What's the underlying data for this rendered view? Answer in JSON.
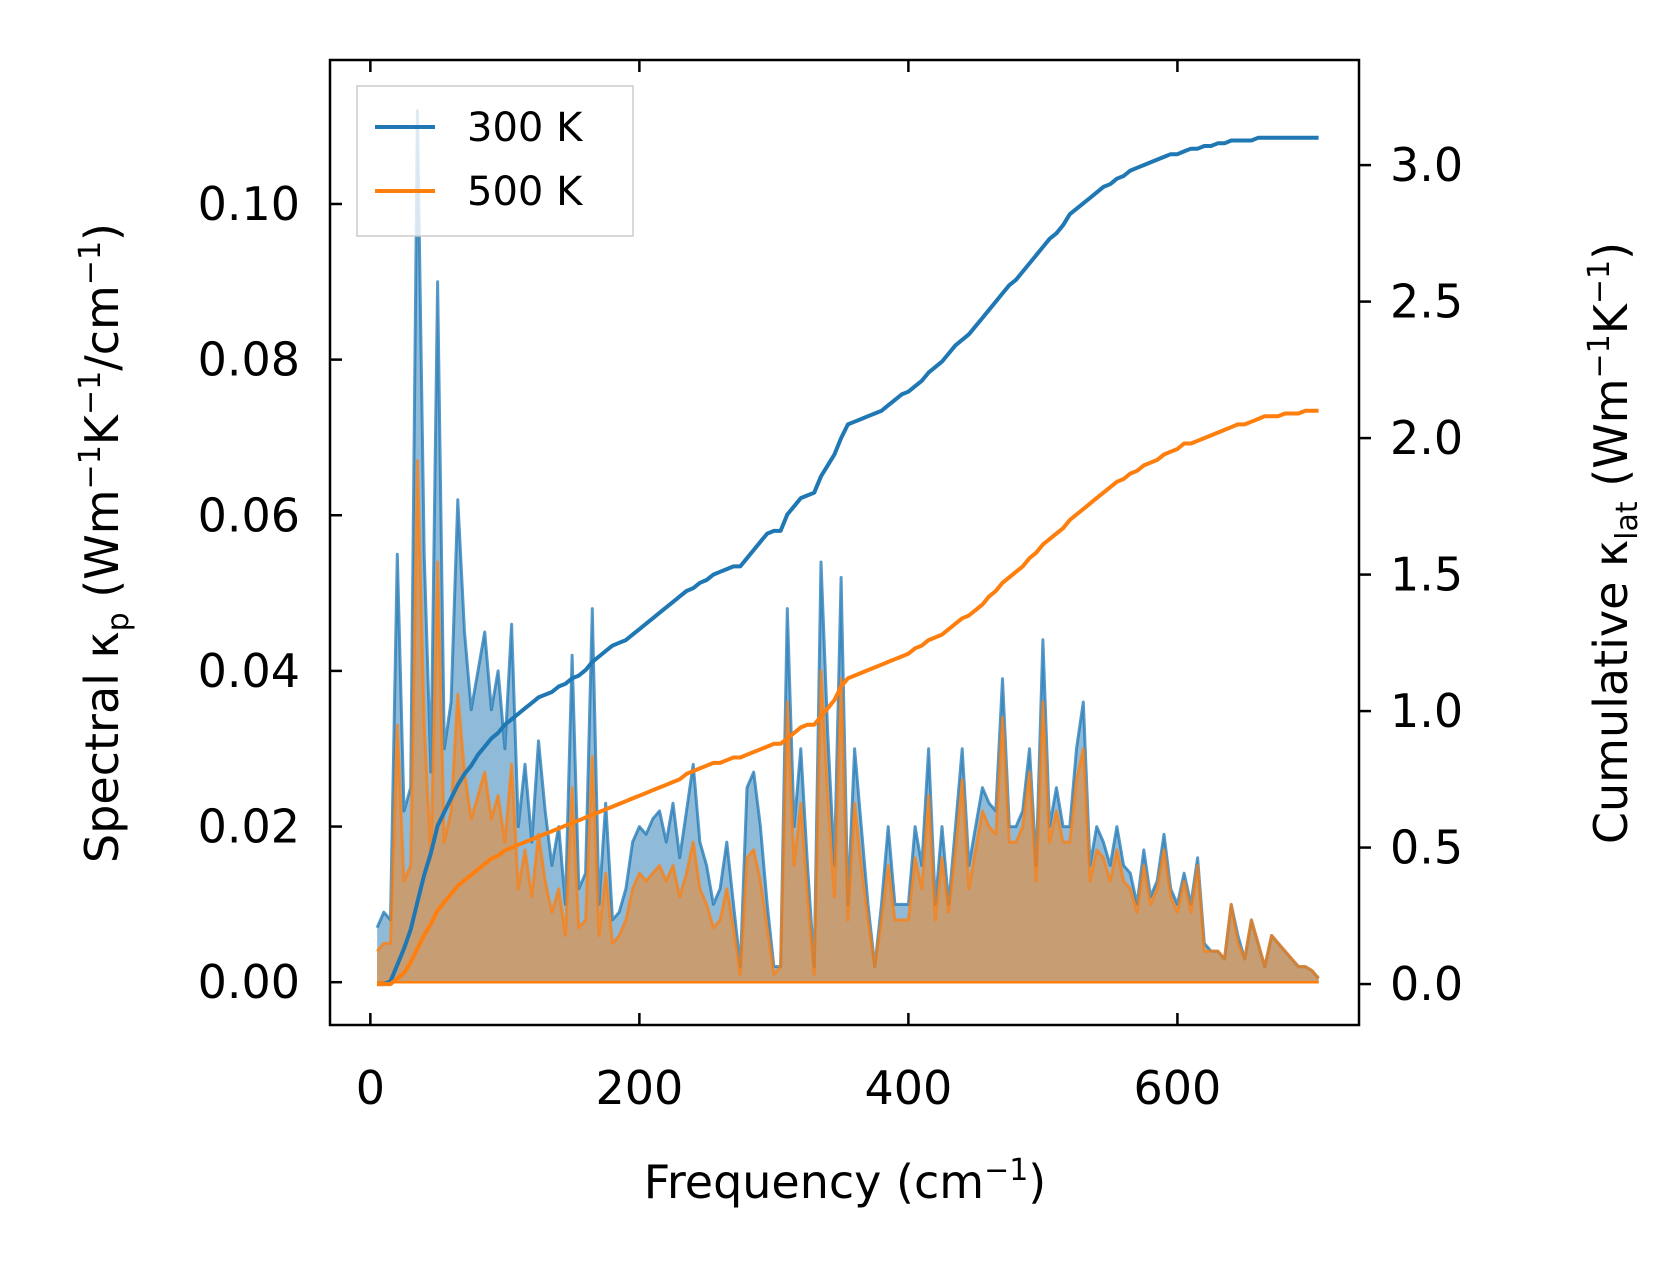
{
  "colors": {
    "series_300K": "#1f77b4",
    "series_500K": "#ff7f0e",
    "axis": "#000000",
    "background": "#ffffff"
  },
  "chart_data": {
    "type": "line",
    "title": "",
    "xlabel": "Frequency (cm",
    "xlabel_sup": "−1",
    "xlabel_tail": ")",
    "ylabel_left": "Spectral κp (Wm−1K−1/cm−1)",
    "ylabel_left_parts": [
      "Spectral κ",
      "p",
      " (Wm",
      "−1",
      "K",
      "−1",
      "/cm",
      "−1",
      ")"
    ],
    "ylabel_right": "Cumulative κlat (Wm−1K−1)",
    "ylabel_right_parts": [
      "Cumulative κ",
      "lat",
      " (Wm",
      "−1",
      "K",
      "−1",
      ")"
    ],
    "xlim": [
      -30,
      735
    ],
    "ylim_left": [
      -0.0055,
      0.1185
    ],
    "ylim_right": [
      -0.15,
      3.385
    ],
    "xticks": [
      0,
      200,
      400,
      600
    ],
    "xtick_labels": [
      "0",
      "200",
      "400",
      "600"
    ],
    "yticks_left": [
      0.0,
      0.02,
      0.04,
      0.06,
      0.08,
      0.1
    ],
    "ytick_labels_left": [
      "0.00",
      "0.02",
      "0.04",
      "0.06",
      "0.08",
      "0.10"
    ],
    "yticks_right": [
      0.0,
      0.5,
      1.0,
      1.5,
      2.0,
      2.5,
      3.0
    ],
    "ytick_labels_right": [
      "0.0",
      "0.5",
      "1.0",
      "1.5",
      "2.0",
      "2.5",
      "3.0"
    ],
    "grid": false,
    "legend_position": "top-left",
    "spectral_x": [
      5,
      10,
      15,
      20,
      25,
      30,
      35,
      40,
      45,
      50,
      55,
      60,
      65,
      70,
      75,
      80,
      85,
      90,
      95,
      100,
      105,
      110,
      115,
      120,
      125,
      130,
      135,
      140,
      145,
      150,
      155,
      160,
      165,
      170,
      175,
      180,
      185,
      190,
      195,
      200,
      205,
      210,
      215,
      220,
      225,
      230,
      235,
      240,
      245,
      250,
      255,
      260,
      265,
      270,
      275,
      280,
      285,
      290,
      295,
      300,
      305,
      310,
      315,
      320,
      325,
      330,
      335,
      340,
      345,
      350,
      355,
      360,
      365,
      370,
      375,
      380,
      385,
      390,
      395,
      400,
      405,
      410,
      415,
      420,
      425,
      430,
      435,
      440,
      445,
      450,
      455,
      460,
      465,
      470,
      475,
      480,
      485,
      490,
      495,
      500,
      505,
      510,
      515,
      520,
      525,
      530,
      535,
      540,
      545,
      550,
      555,
      560,
      565,
      570,
      575,
      580,
      585,
      590,
      595,
      600,
      605,
      610,
      615,
      620,
      625,
      630,
      635,
      640,
      645,
      650,
      655,
      660,
      665,
      670,
      675,
      680,
      685,
      690,
      695,
      700,
      705
    ],
    "series": [
      {
        "name": "300 K",
        "color": "#1f77b4",
        "spectral": [
          0.007,
          0.009,
          0.008,
          0.055,
          0.022,
          0.025,
          0.112,
          0.055,
          0.027,
          0.09,
          0.03,
          0.036,
          0.062,
          0.045,
          0.035,
          0.04,
          0.045,
          0.035,
          0.04,
          0.03,
          0.046,
          0.02,
          0.028,
          0.018,
          0.031,
          0.022,
          0.015,
          0.02,
          0.01,
          0.042,
          0.012,
          0.014,
          0.048,
          0.01,
          0.023,
          0.008,
          0.009,
          0.012,
          0.018,
          0.02,
          0.019,
          0.021,
          0.022,
          0.018,
          0.023,
          0.016,
          0.022,
          0.028,
          0.018,
          0.015,
          0.01,
          0.012,
          0.018,
          0.01,
          0.002,
          0.025,
          0.027,
          0.02,
          0.01,
          0.002,
          0.002,
          0.048,
          0.02,
          0.03,
          0.015,
          0.002,
          0.054,
          0.032,
          0.015,
          0.052,
          0.01,
          0.03,
          0.02,
          0.01,
          0.002,
          0.01,
          0.02,
          0.01,
          0.01,
          0.01,
          0.02,
          0.015,
          0.03,
          0.01,
          0.02,
          0.01,
          0.02,
          0.03,
          0.015,
          0.02,
          0.025,
          0.023,
          0.022,
          0.039,
          0.02,
          0.02,
          0.022,
          0.03,
          0.015,
          0.044,
          0.02,
          0.025,
          0.02,
          0.02,
          0.03,
          0.036,
          0.015,
          0.02,
          0.018,
          0.015,
          0.02,
          0.015,
          0.014,
          0.01,
          0.017,
          0.011,
          0.013,
          0.019,
          0.012,
          0.01,
          0.014,
          0.01,
          0.016,
          0.005,
          0.004,
          0.004,
          0.003,
          0.01,
          0.006,
          0.003,
          0.008,
          0.005,
          0.002,
          0.006,
          0.005,
          0.004,
          0.003,
          0.002,
          0.002,
          0.0015,
          0.0005
        ],
        "cumulative": [
          0.0,
          0.0,
          0.01,
          0.07,
          0.13,
          0.2,
          0.3,
          0.4,
          0.48,
          0.58,
          0.63,
          0.68,
          0.73,
          0.77,
          0.8,
          0.84,
          0.87,
          0.9,
          0.92,
          0.95,
          0.97,
          0.99,
          1.01,
          1.03,
          1.05,
          1.06,
          1.07,
          1.09,
          1.1,
          1.12,
          1.13,
          1.15,
          1.18,
          1.2,
          1.22,
          1.24,
          1.25,
          1.26,
          1.28,
          1.3,
          1.32,
          1.34,
          1.36,
          1.38,
          1.4,
          1.42,
          1.44,
          1.45,
          1.47,
          1.48,
          1.5,
          1.51,
          1.52,
          1.53,
          1.53,
          1.56,
          1.59,
          1.62,
          1.65,
          1.66,
          1.66,
          1.72,
          1.75,
          1.78,
          1.79,
          1.8,
          1.86,
          1.9,
          1.94,
          2.0,
          2.05,
          2.06,
          2.07,
          2.08,
          2.09,
          2.1,
          2.12,
          2.14,
          2.16,
          2.17,
          2.19,
          2.21,
          2.24,
          2.26,
          2.28,
          2.31,
          2.34,
          2.36,
          2.38,
          2.41,
          2.44,
          2.47,
          2.5,
          2.53,
          2.56,
          2.58,
          2.61,
          2.64,
          2.67,
          2.7,
          2.73,
          2.75,
          2.78,
          2.82,
          2.84,
          2.86,
          2.88,
          2.9,
          2.92,
          2.93,
          2.95,
          2.96,
          2.98,
          2.99,
          3.0,
          3.01,
          3.02,
          3.03,
          3.04,
          3.04,
          3.05,
          3.06,
          3.06,
          3.07,
          3.07,
          3.08,
          3.08,
          3.09,
          3.09,
          3.09,
          3.09,
          3.1,
          3.1,
          3.1,
          3.1,
          3.1,
          3.1,
          3.1,
          3.1,
          3.1,
          3.1
        ]
      },
      {
        "name": "500 K",
        "color": "#ff7f0e",
        "spectral": [
          0.004,
          0.005,
          0.005,
          0.033,
          0.013,
          0.015,
          0.067,
          0.033,
          0.016,
          0.054,
          0.018,
          0.022,
          0.037,
          0.027,
          0.021,
          0.024,
          0.027,
          0.021,
          0.024,
          0.018,
          0.028,
          0.012,
          0.017,
          0.011,
          0.019,
          0.013,
          0.009,
          0.012,
          0.006,
          0.025,
          0.007,
          0.008,
          0.029,
          0.006,
          0.014,
          0.005,
          0.006,
          0.008,
          0.012,
          0.014,
          0.013,
          0.014,
          0.015,
          0.013,
          0.015,
          0.011,
          0.014,
          0.018,
          0.012,
          0.01,
          0.007,
          0.008,
          0.012,
          0.007,
          0.001,
          0.016,
          0.017,
          0.013,
          0.007,
          0.001,
          0.002,
          0.036,
          0.015,
          0.023,
          0.011,
          0.001,
          0.04,
          0.024,
          0.011,
          0.039,
          0.008,
          0.023,
          0.015,
          0.008,
          0.002,
          0.008,
          0.015,
          0.008,
          0.008,
          0.008,
          0.016,
          0.012,
          0.024,
          0.008,
          0.016,
          0.009,
          0.017,
          0.026,
          0.012,
          0.017,
          0.022,
          0.02,
          0.019,
          0.034,
          0.018,
          0.018,
          0.02,
          0.027,
          0.013,
          0.036,
          0.018,
          0.022,
          0.018,
          0.018,
          0.026,
          0.03,
          0.013,
          0.017,
          0.016,
          0.013,
          0.017,
          0.013,
          0.012,
          0.009,
          0.015,
          0.01,
          0.012,
          0.017,
          0.011,
          0.009,
          0.013,
          0.009,
          0.015,
          0.004,
          0.004,
          0.004,
          0.003,
          0.01,
          0.005,
          0.003,
          0.008,
          0.005,
          0.002,
          0.006,
          0.005,
          0.004,
          0.003,
          0.002,
          0.002,
          0.0015,
          0.0005
        ],
        "cumulative": [
          0.0,
          0.0,
          0.0,
          0.02,
          0.04,
          0.08,
          0.13,
          0.18,
          0.22,
          0.27,
          0.3,
          0.33,
          0.36,
          0.38,
          0.4,
          0.42,
          0.44,
          0.46,
          0.47,
          0.49,
          0.5,
          0.51,
          0.52,
          0.53,
          0.54,
          0.55,
          0.56,
          0.57,
          0.58,
          0.59,
          0.6,
          0.61,
          0.62,
          0.63,
          0.64,
          0.65,
          0.66,
          0.67,
          0.68,
          0.69,
          0.7,
          0.71,
          0.72,
          0.73,
          0.74,
          0.75,
          0.77,
          0.78,
          0.79,
          0.8,
          0.81,
          0.81,
          0.82,
          0.83,
          0.83,
          0.84,
          0.85,
          0.86,
          0.87,
          0.88,
          0.88,
          0.9,
          0.92,
          0.94,
          0.95,
          0.95,
          0.98,
          1.01,
          1.04,
          1.09,
          1.12,
          1.13,
          1.14,
          1.15,
          1.16,
          1.17,
          1.18,
          1.19,
          1.2,
          1.21,
          1.23,
          1.24,
          1.26,
          1.27,
          1.28,
          1.3,
          1.32,
          1.34,
          1.35,
          1.37,
          1.39,
          1.42,
          1.44,
          1.47,
          1.49,
          1.51,
          1.53,
          1.56,
          1.58,
          1.61,
          1.63,
          1.65,
          1.67,
          1.7,
          1.72,
          1.74,
          1.76,
          1.78,
          1.8,
          1.82,
          1.84,
          1.85,
          1.87,
          1.88,
          1.9,
          1.91,
          1.92,
          1.94,
          1.95,
          1.96,
          1.98,
          1.98,
          1.99,
          2.0,
          2.01,
          2.02,
          2.03,
          2.04,
          2.05,
          2.05,
          2.06,
          2.07,
          2.08,
          2.08,
          2.08,
          2.09,
          2.09,
          2.09,
          2.1,
          2.1,
          2.1
        ]
      }
    ]
  }
}
